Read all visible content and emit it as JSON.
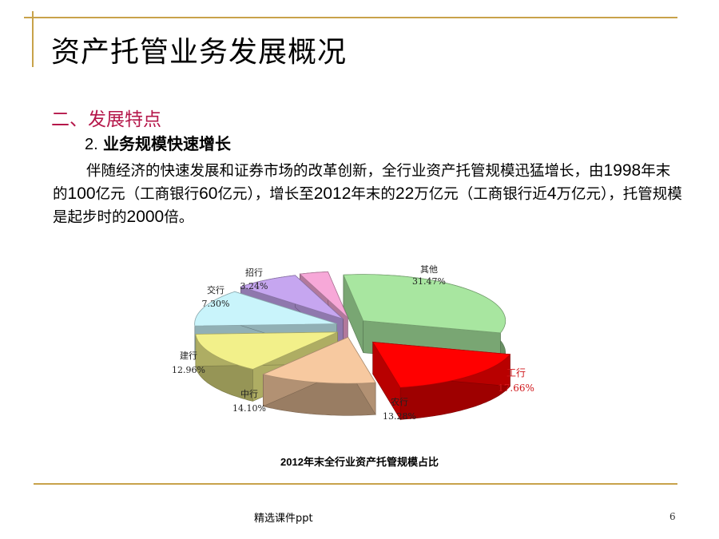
{
  "slide": {
    "title": "资产托管业务发展概况",
    "section": "二、发展特点",
    "subhead_num": "2.",
    "subhead_text": "业务规模快速增长",
    "body": {
      "p1": "伴随经济的快速发展和证券市场的改革创新，全行业资产托管规模迅猛增长，由",
      "n1": "1998",
      "p2": "年末的",
      "n2": "100",
      "p3": "亿元（工商银行",
      "n3": "60",
      "p4": "亿元），增长至",
      "n4": "2012",
      "p5": "年末的",
      "n5": "22",
      "p6": "万亿元（工商银行近",
      "n6": "4",
      "p7": "万亿元），托管规模是起步时的",
      "n7": "2000",
      "p8": "倍。"
    },
    "footer": "精选课件ppt",
    "page_number": "6"
  },
  "chart_data": {
    "type": "pie",
    "title": "2012年末全行业资产托管规模占比",
    "slices": [
      {
        "name": "其他",
        "value": 31.47,
        "label": "31.47%",
        "color": "#a8e6a0"
      },
      {
        "name": "工行",
        "value": 17.66,
        "label": "17.66%",
        "color": "#ff0000",
        "exploded": true
      },
      {
        "name": "农行",
        "value": 13.28,
        "label": "13.28%",
        "color": "#f7c9a0"
      },
      {
        "name": "中行",
        "value": 14.1,
        "label": "14.10%",
        "color": "#f2f08a"
      },
      {
        "name": "建行",
        "value": 12.96,
        "label": "12.96%",
        "color": "#c9f4fb"
      },
      {
        "name": "交行",
        "value": 7.3,
        "label": "7.30%",
        "color": "#c6a6f0"
      },
      {
        "name": "招行",
        "value": 3.24,
        "label": "3.24%",
        "color": "#f7a8d8"
      }
    ]
  }
}
